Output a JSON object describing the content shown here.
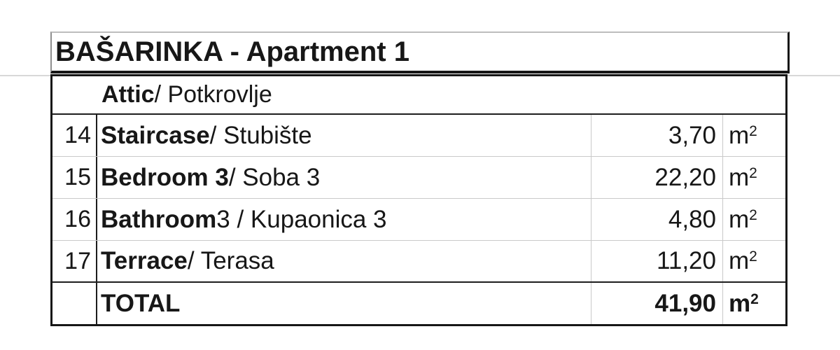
{
  "title_bar": "BAŠARINKA - Apartment 1",
  "section_header": {
    "primary": "Attic",
    "secondary": " / Potkrovlje"
  },
  "area_table": {
    "rows": [
      {
        "row_number": "14",
        "room_primary": "Staircase",
        "room_secondary": " / Stubište",
        "area_value": "3,70",
        "unit_base": "m",
        "unit_exponent": "2"
      },
      {
        "row_number": "15",
        "room_primary": "Bedroom 3",
        "room_secondary": " / Soba 3",
        "area_value": "22,20",
        "unit_base": "m",
        "unit_exponent": "2"
      },
      {
        "row_number": "16",
        "room_primary": "Bathroom",
        "room_secondary": " 3 / Kupaonica 3",
        "area_value": "4,80",
        "unit_base": "m",
        "unit_exponent": "2"
      },
      {
        "row_number": "17",
        "room_primary": "Terrace",
        "room_secondary": " / Terasa",
        "area_value": "11,20",
        "unit_base": "m",
        "unit_exponent": "2"
      }
    ],
    "total_row": {
      "label": "TOTAL",
      "area_value": "41,90",
      "unit_base": "m",
      "unit_exponent": "2"
    }
  },
  "colors": {
    "text": "#171717",
    "border_dark": "#1d1d1d",
    "border_light": "#c9c9c9",
    "background": "#ffffff"
  }
}
